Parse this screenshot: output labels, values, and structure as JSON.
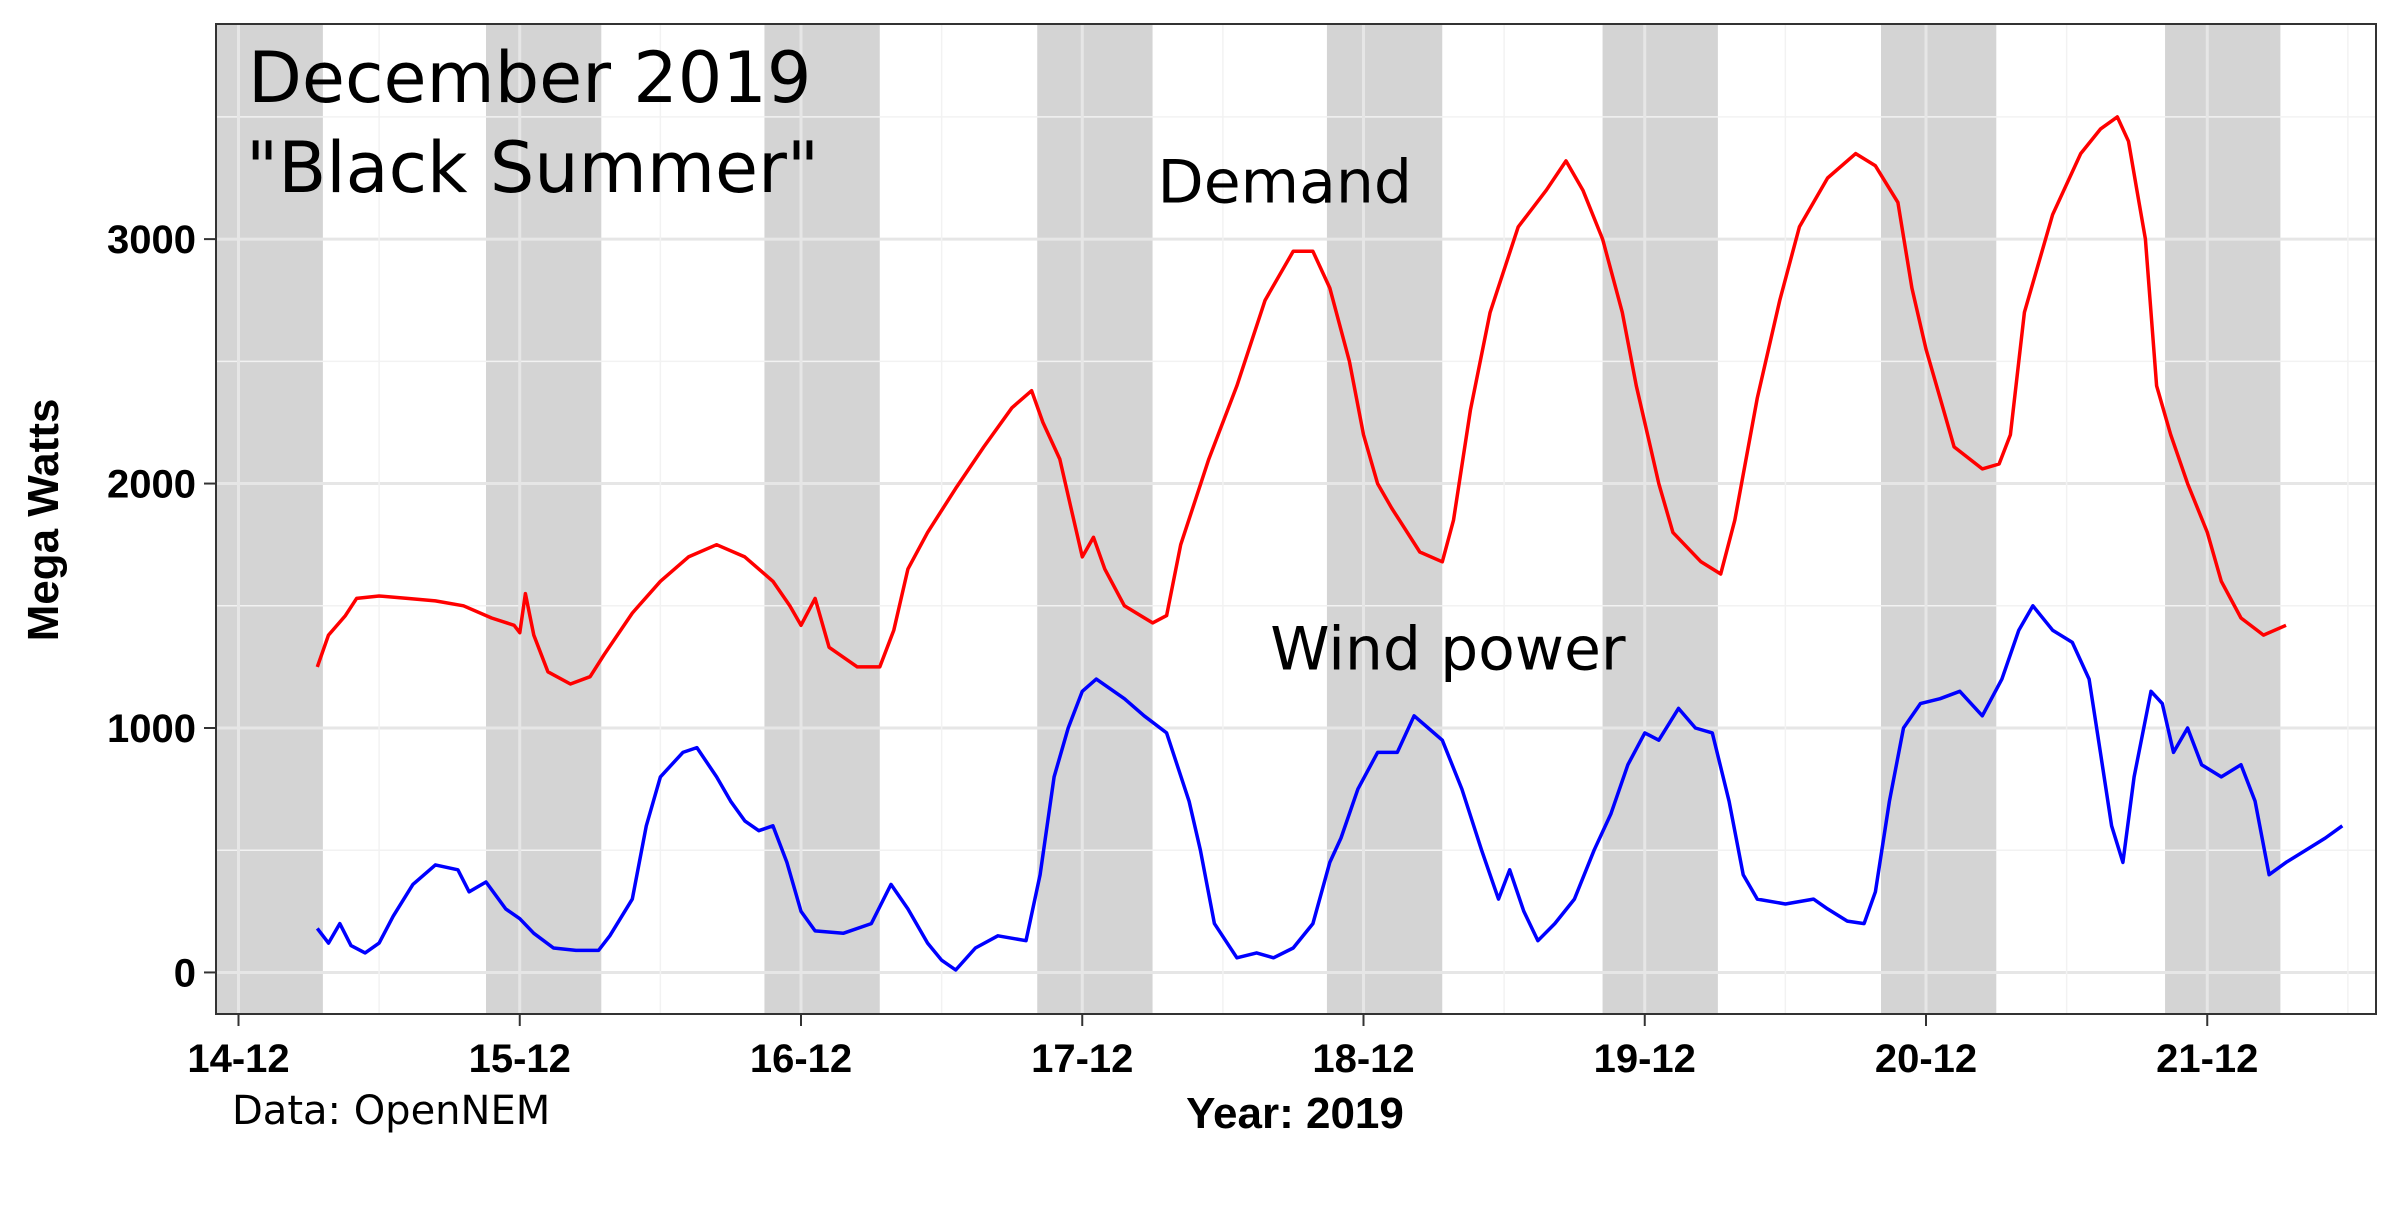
{
  "chart_data": {
    "type": "line",
    "title_lines": [
      "December 2019",
      "\"Black Summer\""
    ],
    "xlabel": "Year: 2019",
    "ylabel": "Mega Watts",
    "caption": "Data: OpenNEM",
    "x_unit": "days since 14-12 00:00",
    "xlim": [
      -0.08,
      7.6
    ],
    "ylim": [
      -170,
      3880
    ],
    "x_ticks": [
      {
        "value": 0,
        "label": "14-12"
      },
      {
        "value": 1,
        "label": "15-12"
      },
      {
        "value": 2,
        "label": "16-12"
      },
      {
        "value": 3,
        "label": "17-12"
      },
      {
        "value": 4,
        "label": "18-12"
      },
      {
        "value": 5,
        "label": "19-12"
      },
      {
        "value": 6,
        "label": "20-12"
      },
      {
        "value": 7,
        "label": "21-12"
      }
    ],
    "y_ticks": [
      {
        "value": 0,
        "label": "0"
      },
      {
        "value": 1000,
        "label": "1000"
      },
      {
        "value": 2000,
        "label": "2000"
      },
      {
        "value": 3000,
        "label": "3000"
      }
    ],
    "grid": true,
    "night_bands": [
      [
        -0.08,
        0.3
      ],
      [
        0.88,
        1.29
      ],
      [
        1.87,
        2.28
      ],
      [
        2.84,
        3.25
      ],
      [
        3.87,
        4.28
      ],
      [
        4.85,
        5.26
      ],
      [
        5.84,
        6.25
      ],
      [
        6.85,
        7.26
      ]
    ],
    "annotations": [
      {
        "text": "Demand",
        "x": 3.72,
        "y": 3150
      },
      {
        "text": "Wind power",
        "x": 4.3,
        "y": 1240
      }
    ],
    "series": [
      {
        "name": "Demand",
        "color": "#ff0000",
        "points": [
          [
            0.28,
            1250
          ],
          [
            0.32,
            1380
          ],
          [
            0.38,
            1460
          ],
          [
            0.42,
            1530
          ],
          [
            0.5,
            1540
          ],
          [
            0.6,
            1530
          ],
          [
            0.7,
            1520
          ],
          [
            0.8,
            1500
          ],
          [
            0.9,
            1450
          ],
          [
            0.98,
            1420
          ],
          [
            1.0,
            1390
          ],
          [
            1.02,
            1550
          ],
          [
            1.05,
            1380
          ],
          [
            1.1,
            1230
          ],
          [
            1.18,
            1180
          ],
          [
            1.25,
            1210
          ],
          [
            1.3,
            1300
          ],
          [
            1.4,
            1470
          ],
          [
            1.5,
            1600
          ],
          [
            1.6,
            1700
          ],
          [
            1.7,
            1750
          ],
          [
            1.8,
            1700
          ],
          [
            1.9,
            1600
          ],
          [
            1.96,
            1500
          ],
          [
            2.0,
            1420
          ],
          [
            2.05,
            1530
          ],
          [
            2.1,
            1330
          ],
          [
            2.2,
            1250
          ],
          [
            2.28,
            1250
          ],
          [
            2.33,
            1400
          ],
          [
            2.38,
            1650
          ],
          [
            2.45,
            1800
          ],
          [
            2.55,
            1980
          ],
          [
            2.65,
            2150
          ],
          [
            2.75,
            2310
          ],
          [
            2.82,
            2380
          ],
          [
            2.86,
            2250
          ],
          [
            2.92,
            2100
          ],
          [
            2.96,
            1900
          ],
          [
            3.0,
            1700
          ],
          [
            3.04,
            1780
          ],
          [
            3.08,
            1650
          ],
          [
            3.15,
            1500
          ],
          [
            3.25,
            1430
          ],
          [
            3.3,
            1460
          ],
          [
            3.35,
            1750
          ],
          [
            3.45,
            2100
          ],
          [
            3.55,
            2400
          ],
          [
            3.65,
            2750
          ],
          [
            3.75,
            2950
          ],
          [
            3.82,
            2950
          ],
          [
            3.88,
            2800
          ],
          [
            3.95,
            2500
          ],
          [
            4.0,
            2200
          ],
          [
            4.05,
            2000
          ],
          [
            4.1,
            1900
          ],
          [
            4.2,
            1720
          ],
          [
            4.28,
            1680
          ],
          [
            4.32,
            1850
          ],
          [
            4.38,
            2300
          ],
          [
            4.45,
            2700
          ],
          [
            4.55,
            3050
          ],
          [
            4.65,
            3200
          ],
          [
            4.72,
            3320
          ],
          [
            4.78,
            3200
          ],
          [
            4.85,
            3000
          ],
          [
            4.92,
            2700
          ],
          [
            4.97,
            2400
          ],
          [
            5.02,
            2150
          ],
          [
            5.05,
            2000
          ],
          [
            5.1,
            1800
          ],
          [
            5.2,
            1680
          ],
          [
            5.27,
            1630
          ],
          [
            5.32,
            1850
          ],
          [
            5.4,
            2350
          ],
          [
            5.48,
            2750
          ],
          [
            5.55,
            3050
          ],
          [
            5.65,
            3250
          ],
          [
            5.75,
            3350
          ],
          [
            5.82,
            3300
          ],
          [
            5.9,
            3150
          ],
          [
            5.95,
            2800
          ],
          [
            6.0,
            2550
          ],
          [
            6.05,
            2350
          ],
          [
            6.1,
            2150
          ],
          [
            6.2,
            2060
          ],
          [
            6.26,
            2080
          ],
          [
            6.3,
            2200
          ],
          [
            6.35,
            2700
          ],
          [
            6.45,
            3100
          ],
          [
            6.55,
            3350
          ],
          [
            6.62,
            3450
          ],
          [
            6.68,
            3500
          ],
          [
            6.72,
            3400
          ],
          [
            6.75,
            3200
          ],
          [
            6.78,
            3000
          ],
          [
            6.82,
            2400
          ],
          [
            6.87,
            2200
          ],
          [
            6.93,
            2000
          ],
          [
            7.0,
            1800
          ],
          [
            7.05,
            1600
          ],
          [
            7.12,
            1450
          ],
          [
            7.2,
            1380
          ],
          [
            7.28,
            1420
          ]
        ]
      },
      {
        "name": "Wind power",
        "color": "#0000ff",
        "points": [
          [
            0.28,
            180
          ],
          [
            0.32,
            120
          ],
          [
            0.36,
            200
          ],
          [
            0.4,
            110
          ],
          [
            0.45,
            80
          ],
          [
            0.5,
            120
          ],
          [
            0.55,
            230
          ],
          [
            0.62,
            360
          ],
          [
            0.7,
            440
          ],
          [
            0.78,
            420
          ],
          [
            0.82,
            330
          ],
          [
            0.88,
            370
          ],
          [
            0.95,
            260
          ],
          [
            1.0,
            220
          ],
          [
            1.05,
            160
          ],
          [
            1.12,
            100
          ],
          [
            1.2,
            90
          ],
          [
            1.28,
            90
          ],
          [
            1.32,
            150
          ],
          [
            1.4,
            300
          ],
          [
            1.45,
            600
          ],
          [
            1.5,
            800
          ],
          [
            1.58,
            900
          ],
          [
            1.63,
            920
          ],
          [
            1.7,
            800
          ],
          [
            1.75,
            700
          ],
          [
            1.8,
            620
          ],
          [
            1.85,
            580
          ],
          [
            1.9,
            600
          ],
          [
            1.95,
            450
          ],
          [
            2.0,
            250
          ],
          [
            2.05,
            170
          ],
          [
            2.15,
            160
          ],
          [
            2.25,
            200
          ],
          [
            2.32,
            360
          ],
          [
            2.38,
            260
          ],
          [
            2.45,
            120
          ],
          [
            2.5,
            50
          ],
          [
            2.55,
            10
          ],
          [
            2.62,
            100
          ],
          [
            2.7,
            150
          ],
          [
            2.8,
            130
          ],
          [
            2.85,
            400
          ],
          [
            2.9,
            800
          ],
          [
            2.95,
            1000
          ],
          [
            3.0,
            1150
          ],
          [
            3.05,
            1200
          ],
          [
            3.15,
            1120
          ],
          [
            3.22,
            1050
          ],
          [
            3.3,
            980
          ],
          [
            3.38,
            700
          ],
          [
            3.42,
            500
          ],
          [
            3.47,
            200
          ],
          [
            3.55,
            60
          ],
          [
            3.62,
            80
          ],
          [
            3.68,
            60
          ],
          [
            3.75,
            100
          ],
          [
            3.82,
            200
          ],
          [
            3.88,
            450
          ],
          [
            3.92,
            550
          ],
          [
            3.98,
            750
          ],
          [
            4.05,
            900
          ],
          [
            4.12,
            900
          ],
          [
            4.18,
            1050
          ],
          [
            4.23,
            1000
          ],
          [
            4.28,
            950
          ],
          [
            4.35,
            750
          ],
          [
            4.42,
            500
          ],
          [
            4.48,
            300
          ],
          [
            4.52,
            420
          ],
          [
            4.57,
            250
          ],
          [
            4.62,
            130
          ],
          [
            4.68,
            200
          ],
          [
            4.75,
            300
          ],
          [
            4.82,
            500
          ],
          [
            4.88,
            650
          ],
          [
            4.94,
            850
          ],
          [
            5.0,
            980
          ],
          [
            5.05,
            950
          ],
          [
            5.12,
            1080
          ],
          [
            5.18,
            1000
          ],
          [
            5.24,
            980
          ],
          [
            5.3,
            700
          ],
          [
            5.35,
            400
          ],
          [
            5.4,
            300
          ],
          [
            5.5,
            280
          ],
          [
            5.6,
            300
          ],
          [
            5.65,
            260
          ],
          [
            5.72,
            210
          ],
          [
            5.78,
            200
          ],
          [
            5.82,
            330
          ],
          [
            5.87,
            700
          ],
          [
            5.92,
            1000
          ],
          [
            5.98,
            1100
          ],
          [
            6.05,
            1120
          ],
          [
            6.12,
            1150
          ],
          [
            6.2,
            1050
          ],
          [
            6.27,
            1200
          ],
          [
            6.33,
            1400
          ],
          [
            6.38,
            1500
          ],
          [
            6.45,
            1400
          ],
          [
            6.52,
            1350
          ],
          [
            6.58,
            1200
          ],
          [
            6.62,
            900
          ],
          [
            6.66,
            600
          ],
          [
            6.7,
            450
          ],
          [
            6.74,
            800
          ],
          [
            6.8,
            1150
          ],
          [
            6.84,
            1100
          ],
          [
            6.88,
            900
          ],
          [
            6.93,
            1000
          ],
          [
            6.98,
            850
          ],
          [
            7.05,
            800
          ],
          [
            7.12,
            850
          ],
          [
            7.17,
            700
          ],
          [
            7.22,
            400
          ],
          [
            7.28,
            450
          ],
          [
            7.35,
            500
          ],
          [
            7.42,
            550
          ],
          [
            7.48,
            600
          ]
        ]
      }
    ]
  }
}
